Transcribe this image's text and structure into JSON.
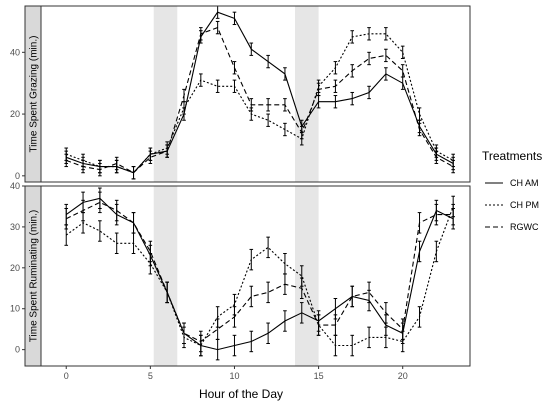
{
  "chart_data": {
    "type": "line",
    "xlabel": "Hour of the Day",
    "x_ticks": [
      0,
      5,
      10,
      15,
      20
    ],
    "xlim": [
      -1.5,
      24
    ],
    "shaded_bands": [
      [
        5.2,
        6.6
      ],
      [
        13.6,
        15.0
      ]
    ],
    "legend": {
      "title": "Treatments",
      "placement": "right"
    },
    "series_styles": {
      "CH AM": {
        "dash": "",
        "color": "#000000"
      },
      "CH PM": {
        "dash": "2,2",
        "color": "#000000"
      },
      "RGWC": {
        "dash": "5,3",
        "color": "#000000"
      }
    },
    "panels": [
      {
        "ylabel": "Time Spent Grazing (min.)",
        "ylim": [
          -2,
          55
        ],
        "y_ticks": [
          0,
          20,
          40
        ],
        "x": [
          0,
          1,
          2,
          3,
          4,
          5,
          6,
          7,
          8,
          9,
          10,
          11,
          12,
          13,
          14,
          15,
          16,
          17,
          18,
          19,
          20,
          21,
          22,
          23
        ],
        "series": [
          {
            "name": "CH AM",
            "values": [
              6,
              4,
              3,
              3,
              1,
              7,
              8,
              20,
              45,
              53,
              51,
              41,
              37,
              33,
              16,
              24,
              24,
              25,
              27,
              33,
              30,
              16,
              7,
              4
            ],
            "error": 2
          },
          {
            "name": "CH PM",
            "values": [
              7,
              5,
              3,
              3,
              1,
              7,
              9,
              22,
              31,
              29,
              29,
              20,
              18,
              15,
              12,
              29,
              35,
              45,
              46,
              46,
              40,
              20,
              8,
              5
            ],
            "error": 2
          },
          {
            "name": "RGWC",
            "values": [
              5,
              3,
              2,
              4,
              1,
              6,
              8,
              26,
              46,
              48,
              35,
              23,
              23,
              23,
              14,
              28,
              29,
              34,
              38,
              39,
              34,
              15,
              6,
              3
            ],
            "error": 2
          }
        ]
      },
      {
        "ylabel": "Time Spent Ruminating (min.)",
        "ylim": [
          -4,
          40
        ],
        "y_ticks": [
          0,
          10,
          20,
          30,
          40
        ],
        "x": [
          0,
          1,
          2,
          3,
          4,
          5,
          6,
          7,
          8,
          9,
          10,
          11,
          12,
          13,
          14,
          15,
          16,
          17,
          18,
          19,
          20,
          21,
          22,
          23
        ],
        "series": [
          {
            "name": "CH AM",
            "values": [
              33,
              36,
              37,
              33,
              31,
              23,
              14,
              4,
              1,
              0,
              1,
              2,
              4,
              7,
              9,
              7,
              10,
              13,
              12,
              6,
              4,
              24,
              34,
              32
            ],
            "error": 2.5
          },
          {
            "name": "CH PM",
            "values": [
              28,
              31,
              29,
              26,
              26,
              21,
              14,
              3,
              1,
              8,
              11,
              22,
              25,
              21,
              18,
              6,
              1,
              1,
              3,
              3,
              2,
              8,
              24,
              35
            ],
            "error": 2.5
          },
          {
            "name": "RGWC",
            "values": [
              32,
              34,
              36,
              34,
              31,
              24,
              14,
              4,
              2,
              5,
              8,
              13,
              14,
              16,
              15,
              6,
              6,
              13,
              14,
              9,
              5,
              31,
              33,
              33
            ],
            "error": 2.5
          }
        ]
      }
    ]
  }
}
